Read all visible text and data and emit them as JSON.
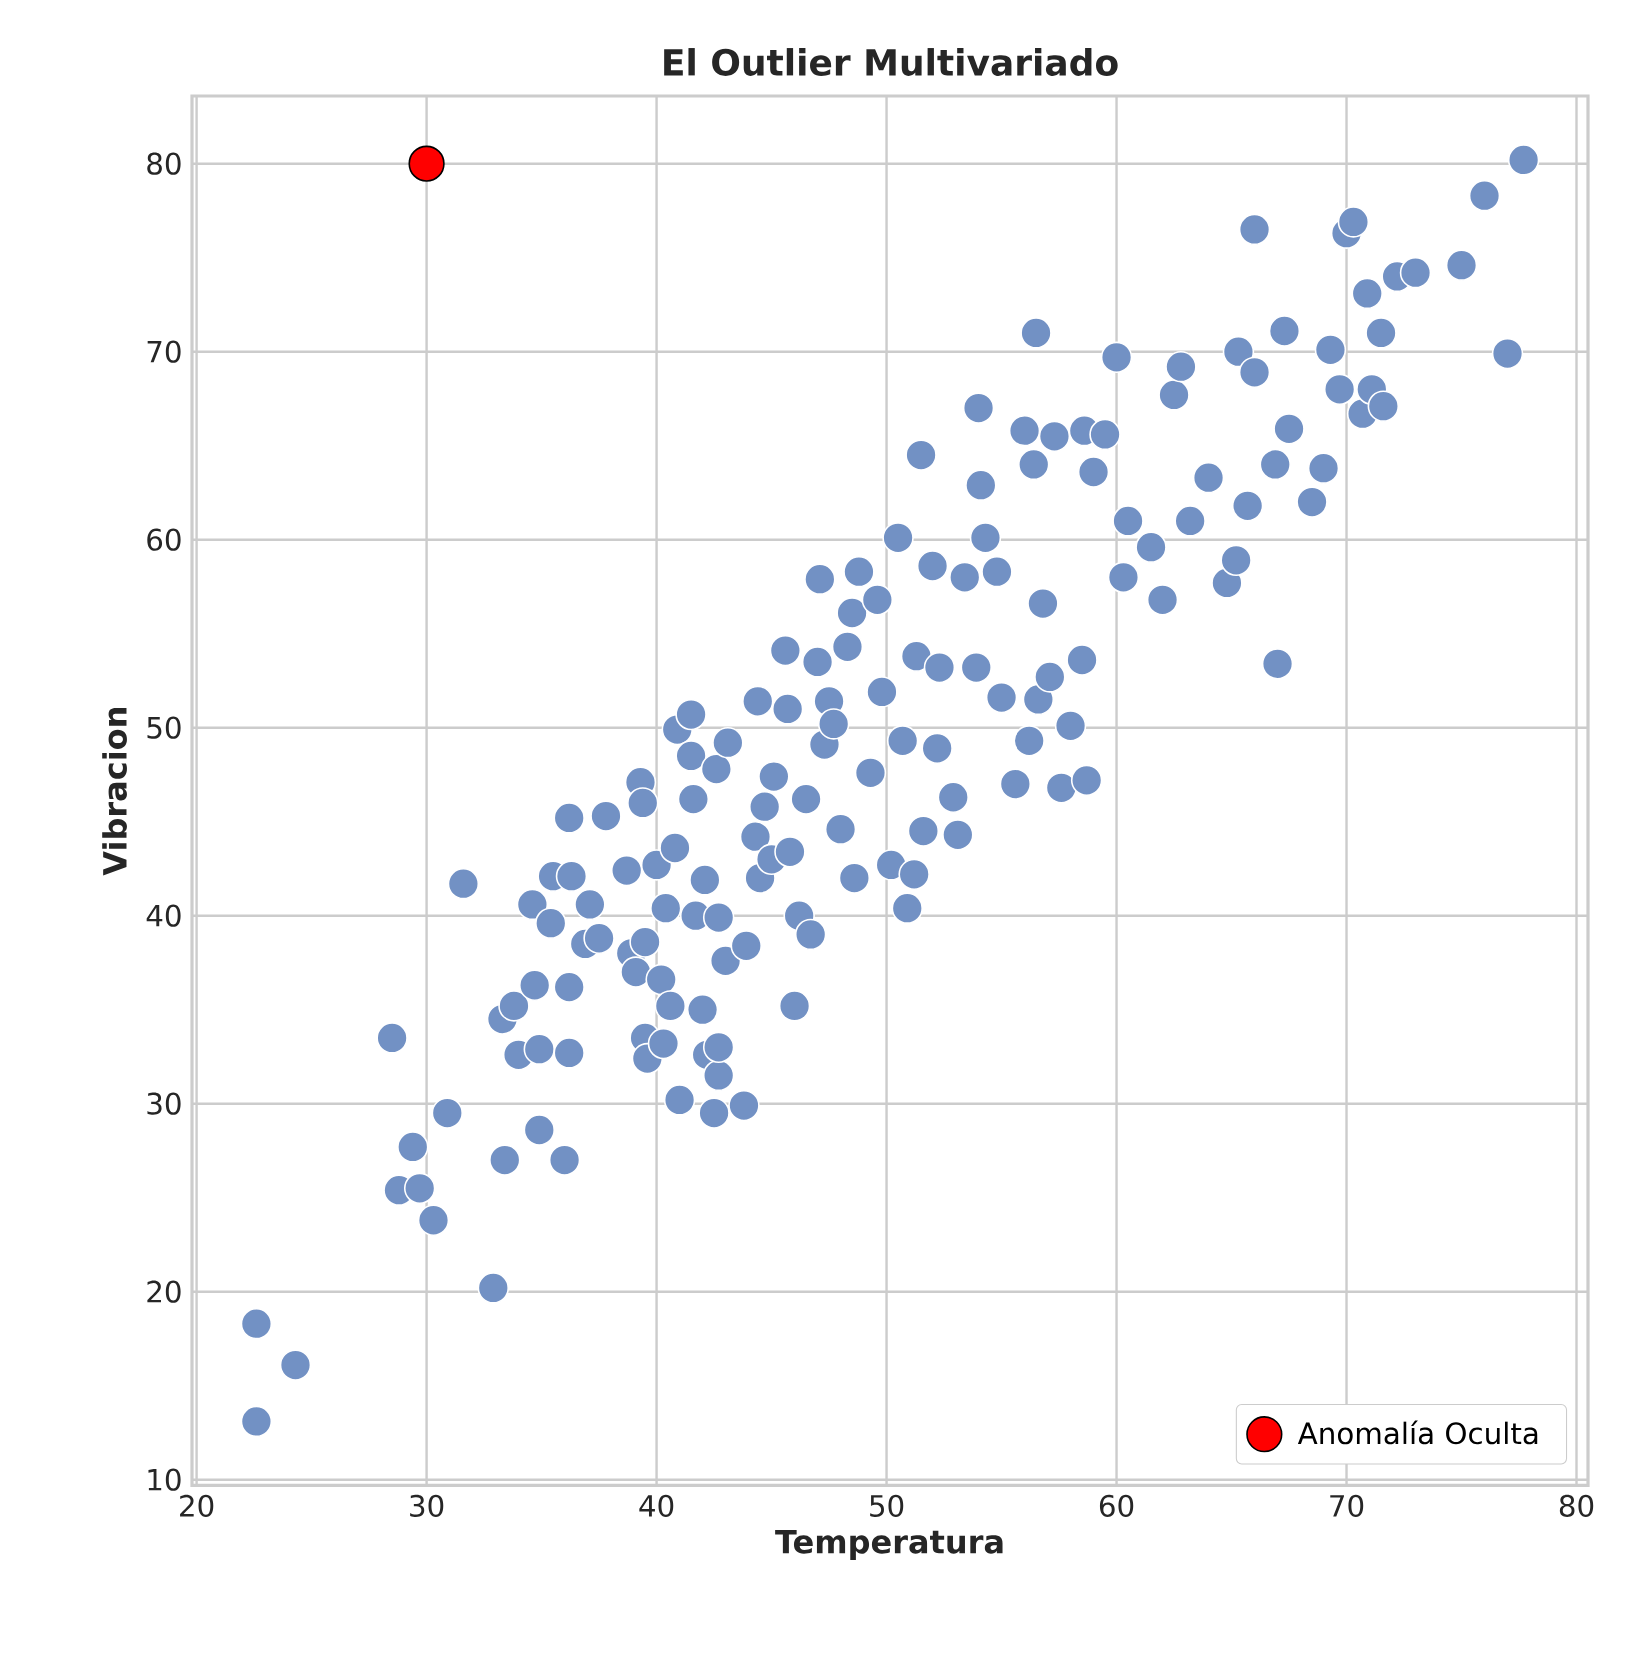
{
  "chart_data": {
    "type": "scatter",
    "title": "El Outlier Multivariado",
    "xlabel": "Temperatura",
    "ylabel": "Vibracion",
    "xlim": [
      19.8,
      80.5
    ],
    "ylim": [
      9.7,
      83.6
    ],
    "xticks": [
      20,
      30,
      40,
      50,
      60,
      70,
      80
    ],
    "yticks": [
      10,
      20,
      30,
      40,
      50,
      60,
      70,
      80
    ],
    "grid": true,
    "legend": "bottom right",
    "marker": "circle",
    "series": [
      {
        "color": "#7291c4",
        "x": [
          22.6,
          22.6,
          24.3,
          28.5,
          28.8,
          29.4,
          29.7,
          30.3,
          30.9,
          31.6,
          32.9,
          33.3,
          33.4,
          33.8,
          34,
          34.6,
          34.7,
          34.9,
          34.9,
          35.4,
          35.5,
          36,
          36.2,
          36.2,
          36.2,
          36.3,
          36.9,
          37.1,
          37.5,
          37.8,
          38.7,
          38.9,
          39.1,
          39.3,
          39.4,
          39.5,
          39.5,
          39.6,
          40,
          40.2,
          40.3,
          40.4,
          40.6,
          40.8,
          40.9,
          41,
          41.5,
          41.5,
          41.6,
          41.7,
          42,
          42.1,
          42.2,
          42.5,
          42.6,
          42.7,
          42.7,
          42.7,
          43,
          43.1,
          43.8,
          43.9,
          44.3,
          44.4,
          44.5,
          44.7,
          45,
          45.1,
          45.6,
          45.7,
          45.8,
          46,
          46.2,
          46.5,
          46.7,
          47,
          47.1,
          47.3,
          47.5,
          47.7,
          48,
          48.3,
          48.5,
          48.6,
          48.8,
          49.3,
          49.6,
          49.8,
          50.2,
          50.5,
          50.7,
          50.9,
          51.2,
          51.3,
          51.5,
          51.6,
          52,
          52.2,
          52.3,
          52.9,
          53.1,
          53.4,
          53.9,
          54,
          54.1,
          54.3,
          54.8,
          55,
          55.6,
          56,
          56.2,
          56.4,
          56.5,
          56.6,
          56.8,
          57.1,
          57.3,
          57.6,
          58,
          58.5,
          58.6,
          58.7,
          59,
          59.5,
          60,
          60.3,
          60.5,
          61.5,
          62,
          62.5,
          62.8,
          63.2,
          64,
          64.8,
          65.2,
          65.3,
          65.7,
          66,
          66,
          66.9,
          67,
          67.3,
          67.5,
          68.5,
          69,
          69.3,
          69.7,
          70,
          70.3,
          70.7,
          70.9,
          71.1,
          71.5,
          71.6,
          72.2,
          73,
          75,
          76,
          77,
          77.7
        ],
        "values": [
          18.3,
          13.1,
          16.1,
          33.5,
          25.4,
          27.7,
          25.5,
          23.8,
          29.5,
          41.7,
          20.2,
          34.5,
          27,
          35.2,
          32.6,
          40.6,
          36.3,
          32.9,
          28.6,
          39.6,
          42.1,
          27,
          32.7,
          36.2,
          45.2,
          42.1,
          38.5,
          40.6,
          38.8,
          45.3,
          42.4,
          38,
          37,
          47.1,
          46,
          38.6,
          33.5,
          32.4,
          42.7,
          36.6,
          33.2,
          40.4,
          35.2,
          43.6,
          49.9,
          30.2,
          48.5,
          50.7,
          46.2,
          40,
          35,
          41.9,
          32.6,
          29.5,
          47.8,
          31.5,
          33,
          39.9,
          37.6,
          49.2,
          29.9,
          38.4,
          44.2,
          51.4,
          42,
          45.8,
          43,
          47.4,
          54.1,
          51,
          43.4,
          35.2,
          40,
          46.2,
          39,
          53.5,
          57.9,
          49.1,
          51.4,
          50.2,
          44.6,
          54.3,
          56.1,
          42,
          58.3,
          47.6,
          56.8,
          51.9,
          42.7,
          60.1,
          49.3,
          40.4,
          42.2,
          53.8,
          64.5,
          44.5,
          58.6,
          48.9,
          53.2,
          46.3,
          44.3,
          58,
          53.2,
          67,
          62.9,
          60.1,
          58.3,
          51.6,
          47,
          65.8,
          49.3,
          64,
          71,
          51.5,
          56.6,
          52.7,
          65.5,
          46.8,
          50.1,
          53.6,
          65.8,
          47.2,
          63.6,
          65.6,
          69.7,
          58,
          61,
          59.6,
          56.8,
          67.7,
          69.2,
          61,
          63.3,
          57.7,
          58.9,
          70,
          61.8,
          76.5,
          68.9,
          64,
          53.4,
          71.1,
          65.9,
          62,
          63.8,
          70.1,
          68,
          76.3,
          76.9,
          66.7,
          73.1,
          68,
          71,
          67.1,
          74,
          74.2,
          74.6,
          78.3,
          69.9,
          80.2
        ]
      },
      {
        "name": "Anomalía Oculta",
        "color": "#ff0000",
        "x": [
          30
        ],
        "values": [
          80
        ]
      }
    ]
  }
}
